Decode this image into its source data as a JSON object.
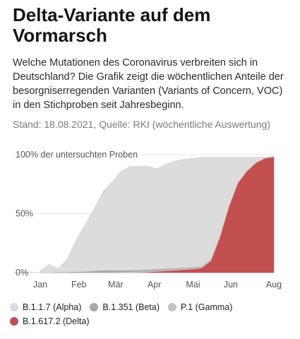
{
  "header": {
    "title": "Delta-Variante auf dem Vormarsch",
    "description": "Welche Mutationen des Coronavirus verbreiten sich in Deutschland? Die Grafik zeigt die wöchentlichen Anteile der besorgniserregenden Varianten (Variants of Concern, VOC) in den Stichproben seit Jahresbeginn.",
    "source": "Stand: 18.08.2021, Quelle: RKI (wöchentliche Auswertung)"
  },
  "chart_data": {
    "type": "area",
    "stacked": true,
    "ylabel": "100% der untersuchten Proben",
    "ylim": [
      0,
      100
    ],
    "yticks": [
      "0%",
      "50%",
      "100% der untersuchten Proben"
    ],
    "ytick_values": [
      0,
      50,
      100
    ],
    "xticks": [
      "Jan",
      "Feb",
      "Mär",
      "Apr",
      "Mai",
      "Jun",
      "Aug"
    ],
    "xtick_positions": [
      0,
      4.3,
      8.4,
      12.7,
      17,
      21.2,
      26
    ],
    "x": [
      0,
      1,
      2,
      3,
      4,
      5,
      6,
      7,
      8,
      9,
      10,
      11,
      12,
      13,
      14,
      15,
      16,
      17,
      18,
      19,
      20,
      21,
      22,
      23,
      24,
      25,
      26
    ],
    "series": [
      {
        "name": "B.1.617.2 (Delta)",
        "color": "#c1504f",
        "values": [
          0,
          0,
          0,
          0,
          0,
          0,
          0,
          0,
          0,
          0,
          0,
          0.2,
          0.5,
          1,
          1.5,
          2,
          2.5,
          3,
          4,
          10,
          30,
          56,
          76,
          86,
          93,
          97,
          98
        ]
      },
      {
        "name": "P.1 (Gamma)",
        "color": "#c2c2c2",
        "values": [
          0,
          0,
          0,
          0,
          0,
          0,
          0,
          0,
          0.3,
          0.5,
          0.8,
          1,
          1,
          1,
          1,
          1,
          1,
          1,
          1,
          1,
          1,
          0.8,
          0.5,
          0.4,
          0.3,
          0.2,
          0.1
        ]
      },
      {
        "name": "B.1.351 (Beta)",
        "color": "#a8a8a8",
        "values": [
          0,
          0.2,
          0.5,
          0.5,
          0.8,
          1,
          1.5,
          2,
          1.8,
          1.5,
          1.3,
          1,
          1,
          1,
          0.8,
          0.8,
          0.7,
          0.6,
          0.5,
          0.5,
          0.4,
          0.3,
          0.2,
          0.2,
          0.1,
          0.1,
          0.1
        ]
      },
      {
        "name": "B.1.1.7 (Alpha)",
        "color": "#dcdcdc",
        "values": [
          2,
          7,
          3,
          11,
          27,
          40,
          53,
          67,
          75,
          84,
          88,
          88,
          88,
          85,
          89,
          91,
          92,
          92.4,
          92.5,
          86.5,
          66.6,
          40.9,
          21.3,
          11.4,
          4.6,
          0.7,
          0.8
        ]
      }
    ]
  },
  "legend": [
    {
      "label": "B.1.1.7 (Alpha)",
      "color": "#dcdcdc"
    },
    {
      "label": "B.1.351 (Beta)",
      "color": "#a8a8a8"
    },
    {
      "label": "P.1 (Gamma)",
      "color": "#c2c2c2"
    },
    {
      "label": "B.1.617.2 (Delta)",
      "color": "#c1504f"
    }
  ]
}
